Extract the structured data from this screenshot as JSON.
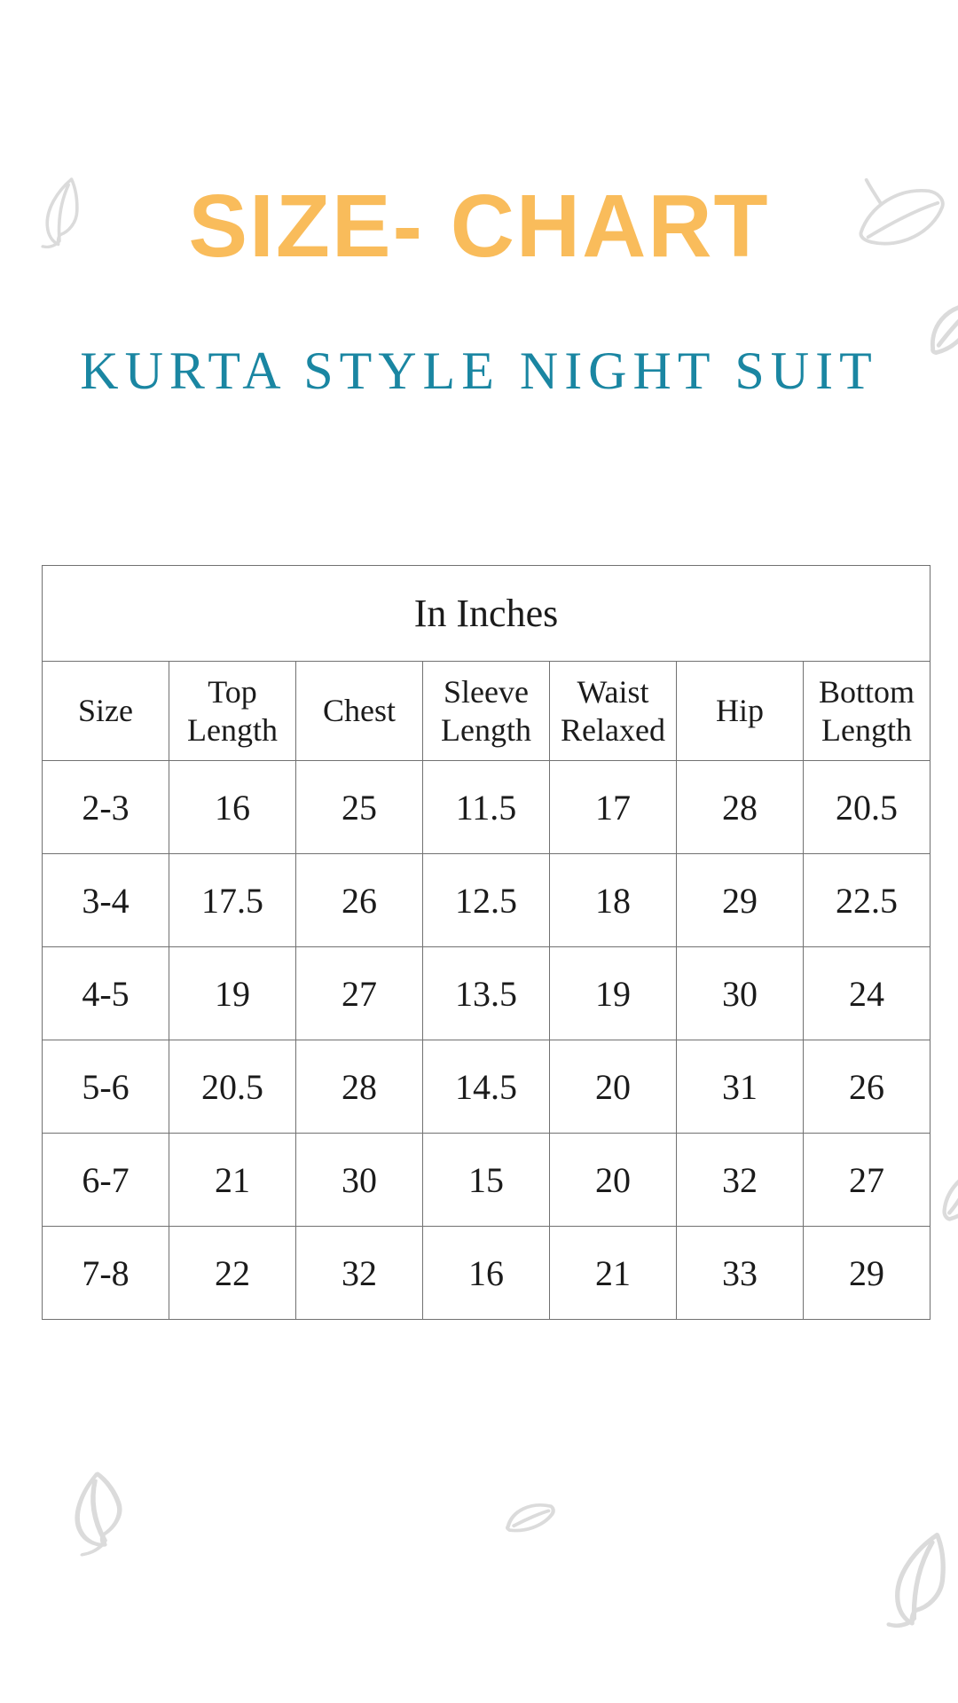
{
  "page": {
    "title": "SIZE- CHART",
    "subtitle": "KURTA STYLE NIGHT SUIT",
    "colors": {
      "title": "#F9BC5B",
      "subtitle": "#1A86A2",
      "table_text": "#1B1B1B",
      "table_border": "#717171",
      "leaf_outline": "#DBDBDB",
      "background": "#FFFFFF"
    },
    "decorations": [
      "leaf-top-left-icon",
      "leaf-top-right-icon",
      "leaf-right-upper-icon",
      "leaf-right-lower-icon",
      "leaf-bottom-left-icon",
      "leaf-bottom-center-icon",
      "leaf-bottom-right-icon"
    ]
  },
  "table": {
    "caption": "In Inches",
    "columns": [
      "Size",
      "Top Length",
      "Chest",
      "Sleeve Length",
      "Waist Relaxed",
      "Hip",
      "Bottom Length"
    ],
    "rows": [
      [
        "2-3",
        "16",
        "25",
        "11.5",
        "17",
        "28",
        "20.5"
      ],
      [
        "3-4",
        "17.5",
        "26",
        "12.5",
        "18",
        "29",
        "22.5"
      ],
      [
        "4-5",
        "19",
        "27",
        "13.5",
        "19",
        "30",
        "24"
      ],
      [
        "5-6",
        "20.5",
        "28",
        "14.5",
        "20",
        "31",
        "26"
      ],
      [
        "6-7",
        "21",
        "30",
        "15",
        "20",
        "32",
        "27"
      ],
      [
        "7-8",
        "22",
        "32",
        "16",
        "21",
        "33",
        "29"
      ]
    ]
  },
  "chart_data": {
    "type": "table",
    "title": "In Inches",
    "columns": [
      "Size",
      "Top Length",
      "Chest",
      "Sleeve Length",
      "Waist Relaxed",
      "Hip",
      "Bottom Length"
    ],
    "rows": [
      [
        "2-3",
        16,
        25,
        11.5,
        17,
        28,
        20.5
      ],
      [
        "3-4",
        17.5,
        26,
        12.5,
        18,
        29,
        22.5
      ],
      [
        "4-5",
        19,
        27,
        13.5,
        19,
        30,
        24
      ],
      [
        "5-6",
        20.5,
        28,
        14.5,
        20,
        31,
        26
      ],
      [
        "6-7",
        21,
        30,
        15,
        20,
        32,
        27
      ],
      [
        "7-8",
        22,
        32,
        16,
        21,
        33,
        29
      ]
    ]
  }
}
